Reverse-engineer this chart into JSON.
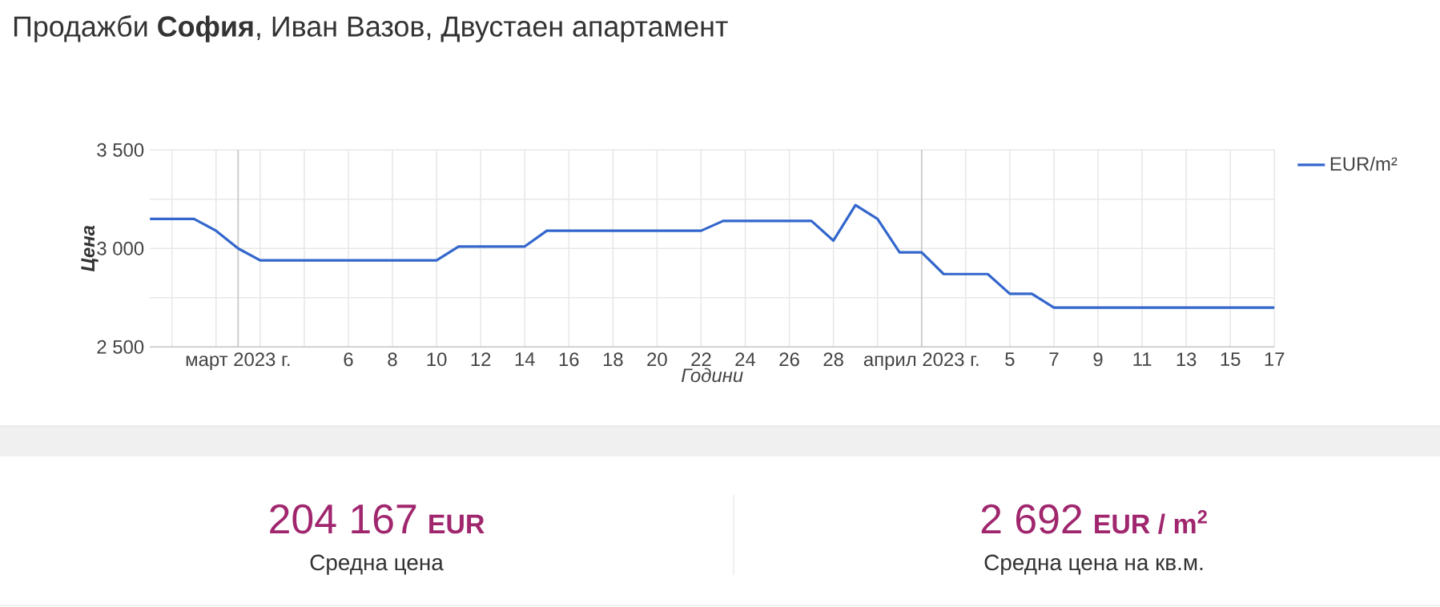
{
  "chart_data": {
    "type": "line",
    "title": "Продажби **София**, Иван Вазов, Двустаен апартамент",
    "xlabel": "Години",
    "ylabel": "Цена",
    "series": [
      {
        "name": "EUR/m²",
        "color": "#3366cc",
        "x": [
          "2023-02-25",
          "2023-02-27",
          "2023-02-28",
          "2023-03-01",
          "2023-03-02",
          "2023-03-10",
          "2023-03-11",
          "2023-03-14",
          "2023-03-15",
          "2023-03-22",
          "2023-03-23",
          "2023-03-27",
          "2023-03-28",
          "2023-03-29",
          "2023-03-30",
          "2023-03-31",
          "2023-04-01",
          "2023-04-02",
          "2023-04-04",
          "2023-04-05",
          "2023-04-06",
          "2023-04-07",
          "2023-04-17"
        ],
        "values": [
          3150,
          3150,
          3090,
          3000,
          2940,
          2940,
          3010,
          3010,
          3090,
          3090,
          3140,
          3140,
          3040,
          3220,
          3150,
          2980,
          2980,
          2870,
          2870,
          2770,
          2770,
          2700,
          2700
        ]
      }
    ],
    "xlim": [
      "2023-02-25",
      "2023-04-17"
    ],
    "xticks": [
      {
        "value": "2023-02-26",
        "label": null
      },
      {
        "value": "2023-02-28",
        "label": null
      },
      {
        "value": "2023-03-01",
        "label": "март 2023 г."
      },
      {
        "value": "2023-03-02",
        "label": null
      },
      {
        "value": "2023-03-04",
        "label": null
      },
      {
        "value": "2023-03-06",
        "label": "6"
      },
      {
        "value": "2023-03-08",
        "label": "8"
      },
      {
        "value": "2023-03-10",
        "label": "10"
      },
      {
        "value": "2023-03-12",
        "label": "12"
      },
      {
        "value": "2023-03-14",
        "label": "14"
      },
      {
        "value": "2023-03-16",
        "label": "16"
      },
      {
        "value": "2023-03-18",
        "label": "18"
      },
      {
        "value": "2023-03-20",
        "label": "20"
      },
      {
        "value": "2023-03-22",
        "label": "22"
      },
      {
        "value": "2023-03-24",
        "label": "24"
      },
      {
        "value": "2023-03-26",
        "label": "26"
      },
      {
        "value": "2023-03-28",
        "label": "28"
      },
      {
        "value": "2023-03-30",
        "label": null
      },
      {
        "value": "2023-04-01",
        "label": "април 2023 г."
      },
      {
        "value": "2023-04-03",
        "label": null
      },
      {
        "value": "2023-04-05",
        "label": "5"
      },
      {
        "value": "2023-04-07",
        "label": "7"
      },
      {
        "value": "2023-04-09",
        "label": "9"
      },
      {
        "value": "2023-04-11",
        "label": "11"
      },
      {
        "value": "2023-04-13",
        "label": "13"
      },
      {
        "value": "2023-04-15",
        "label": "15"
      },
      {
        "value": "2023-04-17",
        "label": "17"
      }
    ],
    "ylim": [
      2500,
      3500
    ],
    "yticks": [
      {
        "value": 2500,
        "label": "2 500"
      },
      {
        "value": 2750,
        "label": null
      },
      {
        "value": 3000,
        "label": "3 000"
      },
      {
        "value": 3250,
        "label": null
      },
      {
        "value": 3500,
        "label": "3 500"
      }
    ],
    "grid": true,
    "legend": "right",
    "marker": "none",
    "line_style": "solid",
    "annotations": [
      "204 167",
      "EUR",
      "Средна цена",
      "2 692",
      "EUR / m$^{2}$",
      "Средна цена на кв.м."
    ]
  }
}
